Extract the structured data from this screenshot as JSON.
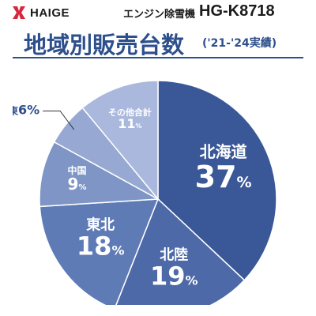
{
  "header": {
    "brand": "HAIGE",
    "product": "エンジン除雪機",
    "model": "HG-K8718"
  },
  "chart_data": {
    "type": "pie",
    "title": "地域別販売台数",
    "subtitle": "('21-'24実績)",
    "slices": [
      {
        "label": "北海道",
        "value": 37,
        "value_label": "37%",
        "color": "#3a5897"
      },
      {
        "label": "北陸",
        "value": 19,
        "value_label": "19%",
        "color": "#4d69a8"
      },
      {
        "label": "東北",
        "value": 18,
        "value_label": "18%",
        "color": "#5f7bb6"
      },
      {
        "label": "中国",
        "value": 9,
        "value_label": "9%",
        "color": "#7e95c6"
      },
      {
        "label": "関東",
        "value": 6,
        "value_label": "6%",
        "color": "#97a9d3"
      },
      {
        "label": "その他合計",
        "value": 11,
        "value_label": "11%",
        "color": "#a9b8dc"
      }
    ]
  },
  "colors": {
    "background": "#ffffff",
    "accent": "#2d4f8c",
    "logo_red": "#d7263d"
  }
}
